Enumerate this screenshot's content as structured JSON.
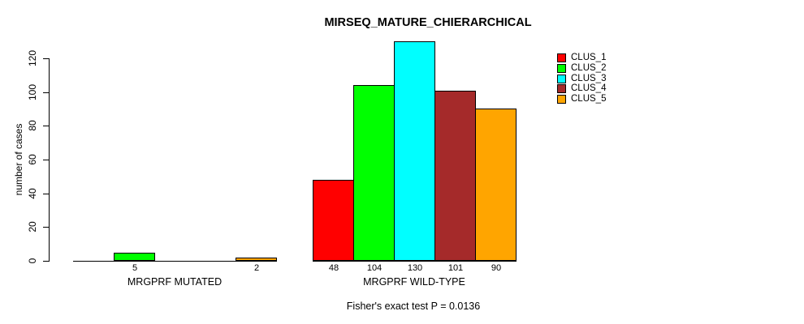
{
  "chart_data": {
    "type": "bar",
    "title": "MIRSEQ_MATURE_CHIERARCHICAL",
    "ylabel": "number of cases",
    "sub": "Fisher's exact test P = 0.0136",
    "ylim": [
      0,
      130
    ],
    "yticks": [
      0,
      20,
      40,
      60,
      80,
      100,
      120
    ],
    "grid": false,
    "legend_position": "topright",
    "series": [
      {
        "name": "CLUS_1",
        "color": "#FF0000"
      },
      {
        "name": "CLUS_2",
        "color": "#00FF00"
      },
      {
        "name": "CLUS_3",
        "color": "#00FFFF"
      },
      {
        "name": "CLUS_4",
        "color": "#A52A2A"
      },
      {
        "name": "CLUS_5",
        "color": "#FFA500"
      }
    ],
    "groups": [
      {
        "label": "MRGPRF MUTATED",
        "values": [
          0,
          5,
          0,
          0,
          2
        ]
      },
      {
        "label": "MRGPRF WILD-TYPE",
        "values": [
          48,
          104,
          130,
          101,
          90
        ]
      }
    ],
    "bar_value_labels": {
      "MRGPRF MUTATED": [
        "",
        "5",
        "",
        "",
        "2"
      ],
      "MRGPRF WILD-TYPE": [
        "48",
        "104",
        "130",
        "101",
        "90"
      ]
    }
  }
}
